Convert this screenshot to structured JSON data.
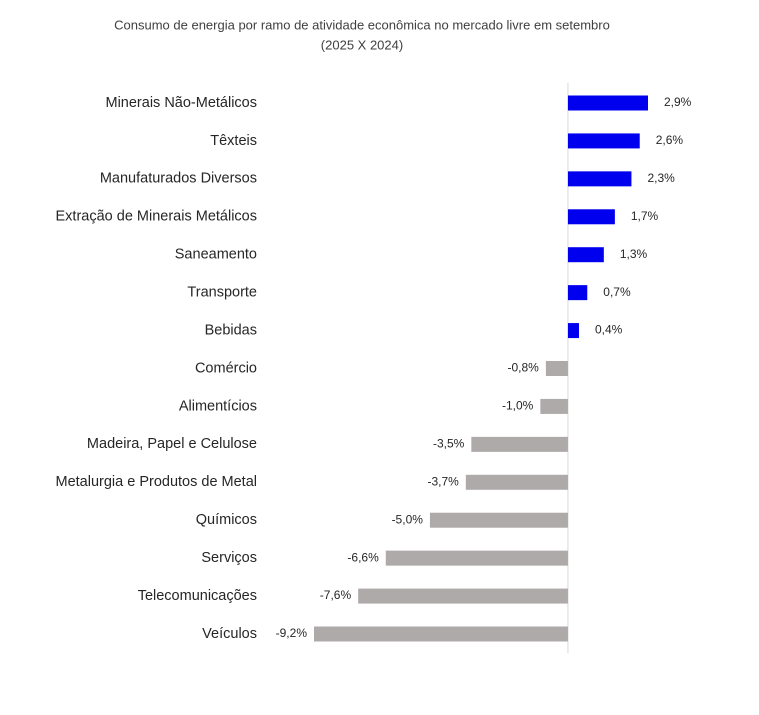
{
  "chart_data": {
    "type": "hbar",
    "title": "Consumo de energia por ramo de atividade econômica no mercado livre em setembro",
    "subtitle": "(2025 X 2024)",
    "categories": [
      "Minerais Não-Metálicos",
      "Têxteis",
      "Manufaturados Diversos",
      "Extração de Minerais Metálicos",
      "Saneamento",
      "Transporte",
      "Bebidas",
      "Comércio",
      "Alimentícios",
      "Madeira, Papel e Celulose",
      "Metalurgia e Produtos de Metal",
      "Químicos",
      "Serviços",
      "Telecomunicações",
      "Veículos"
    ],
    "values": [
      2.9,
      2.6,
      2.3,
      1.7,
      1.3,
      0.7,
      0.4,
      -0.8,
      -1.0,
      -3.5,
      -3.7,
      -5.0,
      -6.6,
      -7.6,
      -9.2
    ],
    "value_labels": [
      "2,9%",
      "2,6%",
      "2,3%",
      "1,7%",
      "1,3%",
      "0,7%",
      "0,4%",
      "-0,8%",
      "-1,0%",
      "-3,5%",
      "-3,7%",
      "-5,0%",
      "-6,6%",
      "-7,6%",
      "-9,2%"
    ],
    "colors": [
      "#0000ee",
      "#0000ee",
      "#0000ee",
      "#0000ee",
      "#0000ee",
      "#0000ee",
      "#0000ee",
      "#aeaaaa",
      "#aeaaaa",
      "#aeaaaa",
      "#aeaaaa",
      "#aeaaaa",
      "#aeaaaa",
      "#aeaaaa",
      "#aeaaaa"
    ]
  }
}
